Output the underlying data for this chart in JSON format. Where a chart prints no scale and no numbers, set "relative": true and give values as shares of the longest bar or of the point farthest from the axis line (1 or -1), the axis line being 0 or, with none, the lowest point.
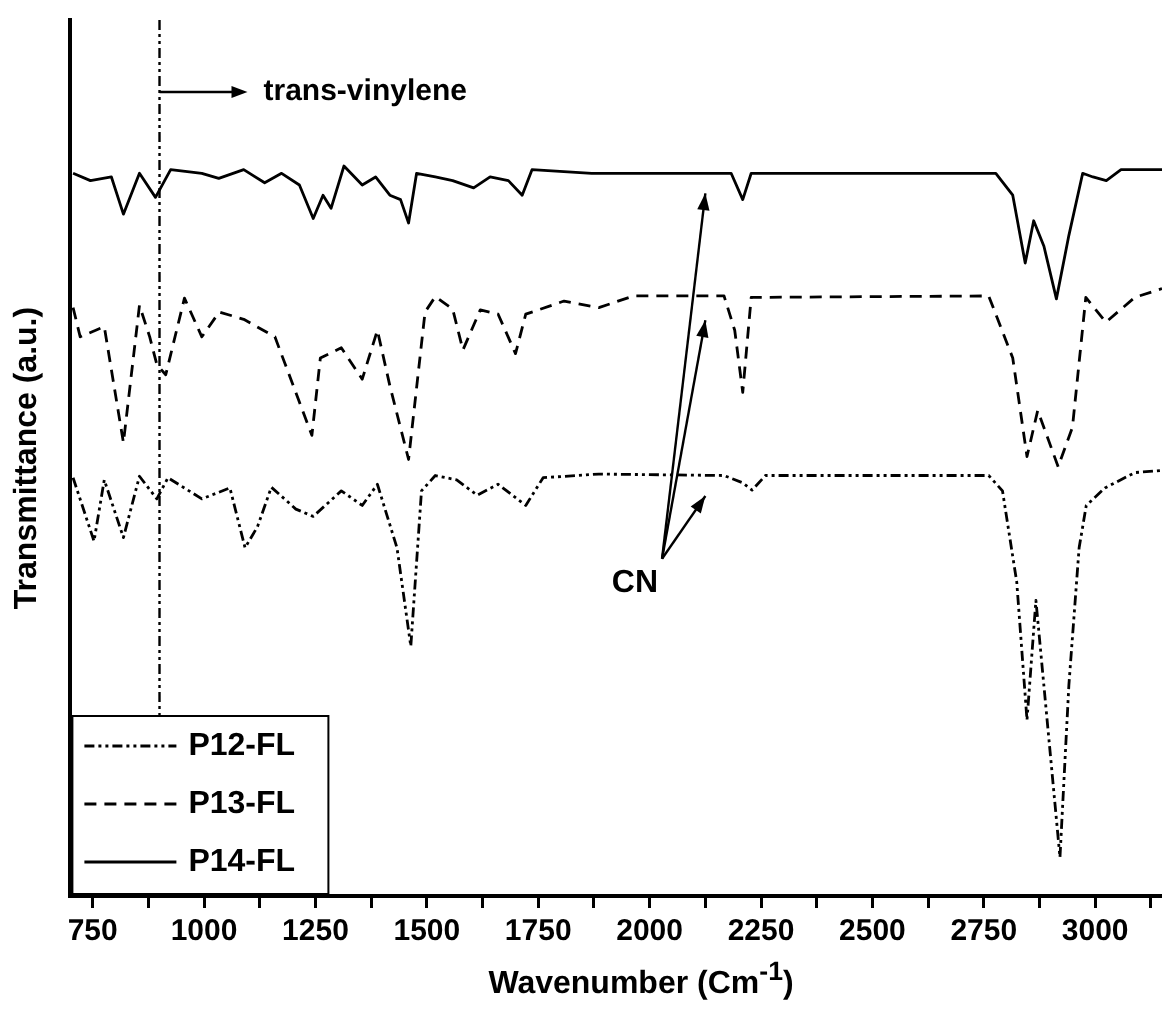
{
  "chart_data": {
    "type": "line",
    "xlabel": "Wavenumber (Cm$^{-1}$)",
    "ylabel": "Transmittance (a.u.)",
    "relative": true,
    "marker": "none",
    "legend": "bottom left",
    "xlim": [
      700,
      3150
    ],
    "xticks": [
      750,
      {
        "value": 875,
        "label": null
      },
      1000,
      {
        "value": 1125,
        "label": null
      },
      1250,
      {
        "value": 1375,
        "label": null
      },
      1500,
      {
        "value": 1625,
        "label": null
      },
      1750,
      {
        "value": 1875,
        "label": null
      },
      2000,
      {
        "value": 2125,
        "label": null
      },
      2250,
      {
        "value": 2375,
        "label": null
      },
      2500,
      {
        "value": 2625,
        "label": null
      },
      2750,
      {
        "value": 2875,
        "label": null
      },
      3000,
      {
        "value": 3125,
        "label": null
      }
    ],
    "series": [
      {
        "name": "P12-FL",
        "color": "#000000",
        "line_style": "dotted",
        "x": [
          706,
          753,
          776,
          819,
          855,
          894,
          919,
          995,
          1058,
          1092,
          1120,
          1151,
          1206,
          1245,
          1308,
          1355,
          1389,
          1433,
          1464,
          1488,
          1519,
          1567,
          1613,
          1660,
          1722,
          1761,
          1886,
          2167,
          2209,
          2230,
          2260,
          2761,
          2792,
          2824,
          2847,
          2867,
          2921,
          2941,
          2964,
          2980,
          3022,
          3089,
          3150
        ],
        "values": [
          0.573,
          0.486,
          0.57,
          0.491,
          0.575,
          0.544,
          0.573,
          0.544,
          0.559,
          0.477,
          0.506,
          0.56,
          0.53,
          0.52,
          0.555,
          0.535,
          0.564,
          0.477,
          0.342,
          0.555,
          0.576,
          0.57,
          0.549,
          0.564,
          0.535,
          0.573,
          0.578,
          0.576,
          0.566,
          0.556,
          0.576,
          0.576,
          0.555,
          0.43,
          0.241,
          0.405,
          0.053,
          0.289,
          0.477,
          0.535,
          0.559,
          0.58,
          0.583
        ]
      },
      {
        "name": "P13-FL",
        "color": "#000000",
        "line_style": "dashed",
        "x": [
          706,
          722,
          776,
          819,
          855,
          878,
          894,
          914,
          956,
          995,
          1034,
          1089,
          1159,
          1242,
          1261,
          1308,
          1355,
          1389,
          1417,
          1459,
          1496,
          1519,
          1558,
          1581,
          1620,
          1660,
          1699,
          1722,
          1808,
          1886,
          1964,
          2167,
          2191,
          2209,
          2228,
          2761,
          2815,
          2847,
          2871,
          2917,
          2949,
          2979,
          3024,
          3089,
          3150
        ],
        "values": [
          0.806,
          0.766,
          0.78,
          0.621,
          0.809,
          0.766,
          0.728,
          0.714,
          0.819,
          0.766,
          0.8,
          0.79,
          0.766,
          0.631,
          0.737,
          0.751,
          0.708,
          0.775,
          0.699,
          0.598,
          0.8,
          0.821,
          0.804,
          0.748,
          0.803,
          0.797,
          0.743,
          0.797,
          0.815,
          0.806,
          0.822,
          0.822,
          0.775,
          0.69,
          0.82,
          0.822,
          0.737,
          0.602,
          0.665,
          0.588,
          0.642,
          0.82,
          0.786,
          0.82,
          0.832
        ]
      },
      {
        "name": "P14-FL",
        "color": "#000000",
        "line_style": "solid",
        "x": [
          706,
          745,
          792,
          819,
          855,
          891,
          925,
          995,
          1033,
          1089,
          1136,
          1174,
          1214,
          1245,
          1267,
          1285,
          1314,
          1355,
          1385,
          1417,
          1441,
          1459,
          1477,
          1519,
          1558,
          1605,
          1642,
          1683,
          1714,
          1736,
          1870,
          2183,
          2209,
          2228,
          2777,
          2815,
          2843,
          2862,
          2885,
          2913,
          2941,
          2972,
          2995,
          3025,
          3058,
          3150
        ],
        "values": [
          0.99,
          0.98,
          0.985,
          0.934,
          0.99,
          0.957,
          0.995,
          0.99,
          0.983,
          0.995,
          0.977,
          0.99,
          0.974,
          0.928,
          0.96,
          0.942,
          1.0,
          0.974,
          0.985,
          0.96,
          0.954,
          0.922,
          0.99,
          0.985,
          0.98,
          0.97,
          0.985,
          0.98,
          0.96,
          0.995,
          0.99,
          0.99,
          0.954,
          0.99,
          0.99,
          0.96,
          0.867,
          0.925,
          0.89,
          0.818,
          0.905,
          0.99,
          0.985,
          0.98,
          0.995,
          0.995
        ]
      }
    ],
    "ref_lines": [
      {
        "axis": "x",
        "value": 900,
        "label": "trans-vinylene",
        "line_style": "dotted"
      }
    ],
    "annotations": [
      "CN"
    ]
  }
}
